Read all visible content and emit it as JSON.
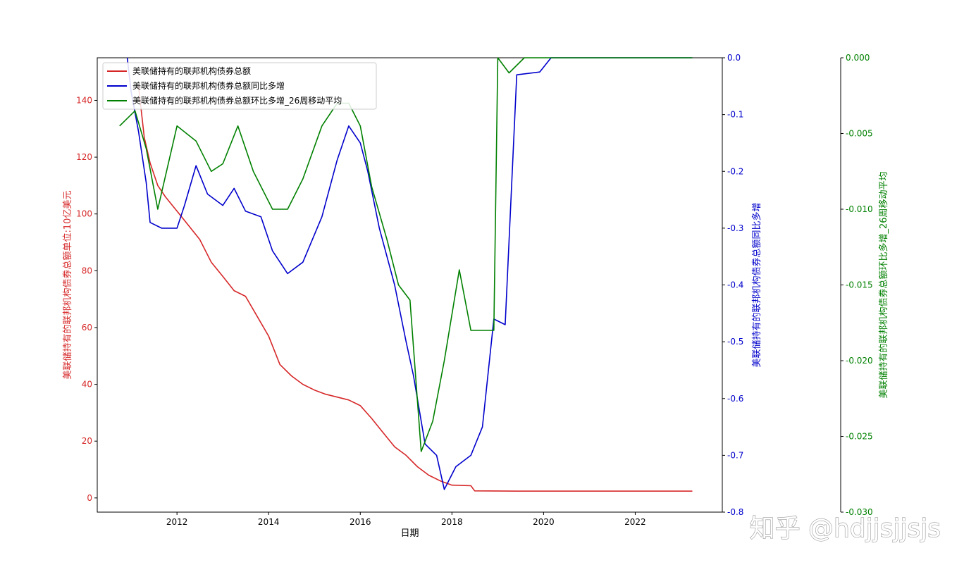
{
  "chart_data": {
    "type": "line",
    "xlabel": "日期",
    "x_ticks": [
      "2012",
      "2014",
      "2016",
      "2018",
      "2020",
      "2022"
    ],
    "x_range": [
      "2010-04-01",
      "2023-12-01"
    ],
    "axes": [
      {
        "id": "left",
        "label": "美联储持有的联邦机构债券总额单位:10亿美元",
        "color": "#d62728",
        "ylim": [
          -5,
          155
        ],
        "ticks": [
          "0",
          "20",
          "40",
          "60",
          "80",
          "100",
          "120",
          "140"
        ]
      },
      {
        "id": "right1",
        "label": "美联储持有的联邦机构债券总额同比多增",
        "color": "#0000cc",
        "ylim": [
          -0.8,
          0.0
        ],
        "ticks": [
          "-0.8",
          "-0.7",
          "-0.6",
          "-0.5",
          "-0.4",
          "-0.3",
          "-0.2",
          "-0.1",
          "0.0"
        ]
      },
      {
        "id": "right2",
        "label": "美联储持有的联邦机构债券总额环比多增_26周移动平均",
        "color": "#008000",
        "ylim": [
          -0.03,
          0.0
        ],
        "ticks": [
          "-0.030",
          "-0.025",
          "-0.020",
          "-0.015",
          "-0.010",
          "-0.005",
          "0.000"
        ]
      }
    ],
    "series": [
      {
        "name": "美联储持有的联邦机构债券总额",
        "axis": "left",
        "color": "#d62728",
        "points": [
          [
            "2011-03-01",
            145
          ],
          [
            "2011-04-15",
            127
          ],
          [
            "2011-06-01",
            118
          ],
          [
            "2011-08-01",
            110
          ],
          [
            "2011-10-01",
            106
          ],
          [
            "2012-01-01",
            101
          ],
          [
            "2012-04-01",
            96
          ],
          [
            "2012-07-01",
            91
          ],
          [
            "2012-10-01",
            83
          ],
          [
            "2013-01-01",
            78
          ],
          [
            "2013-04-01",
            73
          ],
          [
            "2013-07-01",
            71
          ],
          [
            "2013-10-01",
            64
          ],
          [
            "2014-01-01",
            57
          ],
          [
            "2014-04-01",
            47
          ],
          [
            "2014-07-01",
            43
          ],
          [
            "2014-10-01",
            40
          ],
          [
            "2015-01-01",
            38
          ],
          [
            "2015-04-01",
            36.5
          ],
          [
            "2015-07-01",
            35.5
          ],
          [
            "2015-10-01",
            34.5
          ],
          [
            "2016-01-01",
            32.5
          ],
          [
            "2016-04-01",
            28
          ],
          [
            "2016-07-01",
            23
          ],
          [
            "2016-10-01",
            18
          ],
          [
            "2017-01-01",
            15
          ],
          [
            "2017-04-01",
            11
          ],
          [
            "2017-07-01",
            8
          ],
          [
            "2017-10-01",
            6
          ],
          [
            "2018-01-01",
            4.5
          ],
          [
            "2018-06-01",
            4.3
          ],
          [
            "2018-07-01",
            2.5
          ],
          [
            "2019-06-01",
            2.4
          ],
          [
            "2020-06-01",
            2.4
          ],
          [
            "2023-04-01",
            2.4
          ]
        ]
      },
      {
        "name": "美联储持有的联邦机构债券总额同比多增",
        "axis": "right1",
        "color": "#0000cc",
        "points": [
          [
            "2010-12-01",
            0.0
          ],
          [
            "2011-01-01",
            -0.06
          ],
          [
            "2011-03-01",
            -0.13
          ],
          [
            "2011-05-01",
            -0.22
          ],
          [
            "2011-06-01",
            -0.29
          ],
          [
            "2011-09-01",
            -0.3
          ],
          [
            "2012-01-01",
            -0.3
          ],
          [
            "2012-03-01",
            -0.26
          ],
          [
            "2012-06-01",
            -0.19
          ],
          [
            "2012-09-01",
            -0.24
          ],
          [
            "2013-01-01",
            -0.26
          ],
          [
            "2013-04-01",
            -0.23
          ],
          [
            "2013-07-01",
            -0.27
          ],
          [
            "2013-11-01",
            -0.28
          ],
          [
            "2014-02-01",
            -0.34
          ],
          [
            "2014-06-01",
            -0.38
          ],
          [
            "2014-10-01",
            -0.36
          ],
          [
            "2015-03-01",
            -0.28
          ],
          [
            "2015-07-01",
            -0.18
          ],
          [
            "2015-10-01",
            -0.12
          ],
          [
            "2016-01-01",
            -0.15
          ],
          [
            "2016-03-01",
            -0.2
          ],
          [
            "2016-06-01",
            -0.3
          ],
          [
            "2016-10-01",
            -0.4
          ],
          [
            "2017-01-01",
            -0.5
          ],
          [
            "2017-03-01",
            -0.56
          ],
          [
            "2017-06-01",
            -0.68
          ],
          [
            "2017-09-01",
            -0.7
          ],
          [
            "2017-11-01",
            -0.76
          ],
          [
            "2018-02-01",
            -0.72
          ],
          [
            "2018-06-01",
            -0.7
          ],
          [
            "2018-09-01",
            -0.65
          ],
          [
            "2018-12-01",
            -0.46
          ],
          [
            "2019-03-01",
            -0.47
          ],
          [
            "2019-06-01",
            -0.03
          ],
          [
            "2019-12-01",
            -0.025
          ],
          [
            "2020-03-01",
            0.0
          ],
          [
            "2023-04-01",
            0.0
          ]
        ]
      },
      {
        "name": "美联储持有的联邦机构债券总额环比多增_26周移动平均",
        "axis": "right2",
        "color": "#008000",
        "points": [
          [
            "2010-10-01",
            -0.0045
          ],
          [
            "2011-02-01",
            -0.0035
          ],
          [
            "2011-05-01",
            -0.006
          ],
          [
            "2011-08-01",
            -0.01
          ],
          [
            "2012-01-01",
            -0.0045
          ],
          [
            "2012-06-01",
            -0.0055
          ],
          [
            "2012-10-01",
            -0.0075
          ],
          [
            "2013-01-01",
            -0.007
          ],
          [
            "2013-05-01",
            -0.0045
          ],
          [
            "2013-09-01",
            -0.0075
          ],
          [
            "2014-02-01",
            -0.01
          ],
          [
            "2014-06-01",
            -0.01
          ],
          [
            "2014-10-01",
            -0.008
          ],
          [
            "2015-03-01",
            -0.0045
          ],
          [
            "2015-07-01",
            -0.003
          ],
          [
            "2015-10-01",
            -0.003
          ],
          [
            "2016-01-01",
            -0.0045
          ],
          [
            "2016-04-01",
            -0.0085
          ],
          [
            "2016-08-01",
            -0.012
          ],
          [
            "2016-11-01",
            -0.015
          ],
          [
            "2017-02-01",
            -0.016
          ],
          [
            "2017-05-01",
            -0.026
          ],
          [
            "2017-08-01",
            -0.024
          ],
          [
            "2017-11-01",
            -0.02
          ],
          [
            "2018-03-01",
            -0.014
          ],
          [
            "2018-06-01",
            -0.018
          ],
          [
            "2018-12-01",
            -0.018
          ],
          [
            "2019-01-01",
            0.0
          ],
          [
            "2019-04-01",
            -0.001
          ],
          [
            "2019-08-01",
            0.0
          ],
          [
            "2023-04-01",
            0.0
          ]
        ]
      }
    ],
    "legend": {
      "position": "top-left",
      "entries": [
        "美联储持有的联邦机构债券总额",
        "美联储持有的联邦机构债券总额同比多增",
        "美联储持有的联邦机构债券总额环比多增_26周移动平均"
      ]
    },
    "watermark": "知乎 @hdjjsjjsjs"
  }
}
